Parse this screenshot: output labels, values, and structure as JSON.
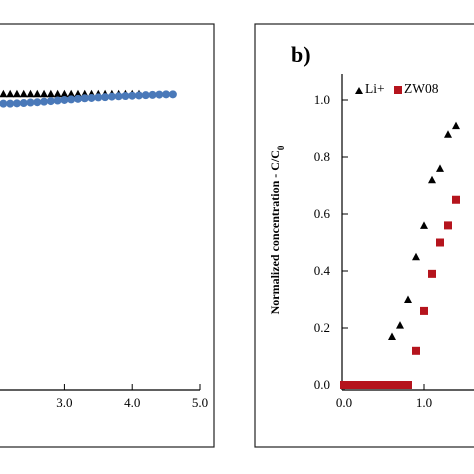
{
  "chart_data": [
    {
      "panel": "a",
      "type": "scatter",
      "title": "",
      "xlabel": "",
      "ylabel": "",
      "xlim": [
        2.05,
        5.0
      ],
      "ylim": [
        -0.05,
        1.07
      ],
      "x_tick_labels": [
        "3.0",
        "4.0",
        "5.0"
      ],
      "x_ticks": [
        3.0,
        4.0,
        5.0
      ],
      "grid": false,
      "colors": {
        "triangle": "#000000",
        "circle": "#4a79b9"
      },
      "series": [
        {
          "marker": "triangle",
          "x": [
            2.1,
            2.2,
            2.3,
            2.4,
            2.5,
            2.6,
            2.7,
            2.8,
            2.9,
            3.0,
            3.1,
            3.2,
            3.3,
            3.4,
            3.5,
            3.6,
            3.7,
            3.8,
            3.9,
            4.0,
            4.1
          ],
          "y": [
            1.0,
            1.0,
            1.0,
            1.0,
            1.0,
            1.0,
            1.0,
            1.0,
            1.0,
            1.0,
            1.0,
            1.0,
            1.0,
            1.0,
            1.0,
            1.0,
            1.0,
            1.0,
            1.0,
            1.0,
            1.0
          ]
        },
        {
          "marker": "circle",
          "x": [
            2.1,
            2.2,
            2.3,
            2.4,
            2.5,
            2.6,
            2.7,
            2.8,
            2.9,
            3.0,
            3.1,
            3.2,
            3.3,
            3.4,
            3.5,
            3.6,
            3.7,
            3.8,
            3.9,
            4.0,
            4.1,
            4.2,
            4.3,
            4.4,
            4.5,
            4.6
          ],
          "y": [
            0.965,
            0.965,
            0.966,
            0.967,
            0.969,
            0.97,
            0.972,
            0.974,
            0.976,
            0.978,
            0.98,
            0.982,
            0.984,
            0.985,
            0.987,
            0.988,
            0.99,
            0.991,
            0.992,
            0.993,
            0.994,
            0.995,
            0.996,
            0.997,
            0.998,
            0.998
          ]
        }
      ]
    },
    {
      "panel": "b",
      "panel_label": "b)",
      "type": "scatter",
      "title": "",
      "xlabel": "",
      "ylabel": "Normalized concentration - C/C",
      "ylabel_subscript": "0",
      "xlim": [
        -0.05,
        1.6
      ],
      "ylim": [
        -0.05,
        1.07
      ],
      "x_ticks": [
        0.0,
        1.0
      ],
      "x_tick_labels": [
        "0.0",
        "1.0"
      ],
      "y_ticks": [
        0.0,
        0.2,
        0.4,
        0.6,
        0.8,
        1.0
      ],
      "y_tick_labels": [
        "0.0",
        "0.2",
        "0.4",
        "0.6",
        "0.8",
        "1.0"
      ],
      "grid": false,
      "legend_position": "top-left",
      "colors": {
        "Li+": "#000000",
        "ZW08": "#b5141d"
      },
      "series": [
        {
          "name": "Li+",
          "marker": "triangle",
          "x": [
            0.0,
            0.1,
            0.2,
            0.3,
            0.4,
            0.5,
            0.6,
            0.7,
            0.8,
            0.9,
            1.0,
            1.1,
            1.2,
            1.3,
            1.4
          ],
          "y": [
            0.0,
            0.0,
            0.0,
            0.0,
            0.0,
            0.0,
            0.17,
            0.21,
            0.3,
            0.45,
            0.56,
            0.72,
            0.76,
            0.88,
            0.91
          ]
        },
        {
          "name": "ZW08",
          "marker": "square",
          "x": [
            0.0,
            0.1,
            0.2,
            0.3,
            0.4,
            0.5,
            0.6,
            0.7,
            0.8,
            0.9,
            1.0,
            1.1,
            1.2,
            1.3,
            1.4
          ],
          "y": [
            0.0,
            0.0,
            0.0,
            0.0,
            0.0,
            0.0,
            0.0,
            0.0,
            0.0,
            0.12,
            0.26,
            0.39,
            0.5,
            0.56,
            0.65
          ]
        }
      ]
    }
  ]
}
